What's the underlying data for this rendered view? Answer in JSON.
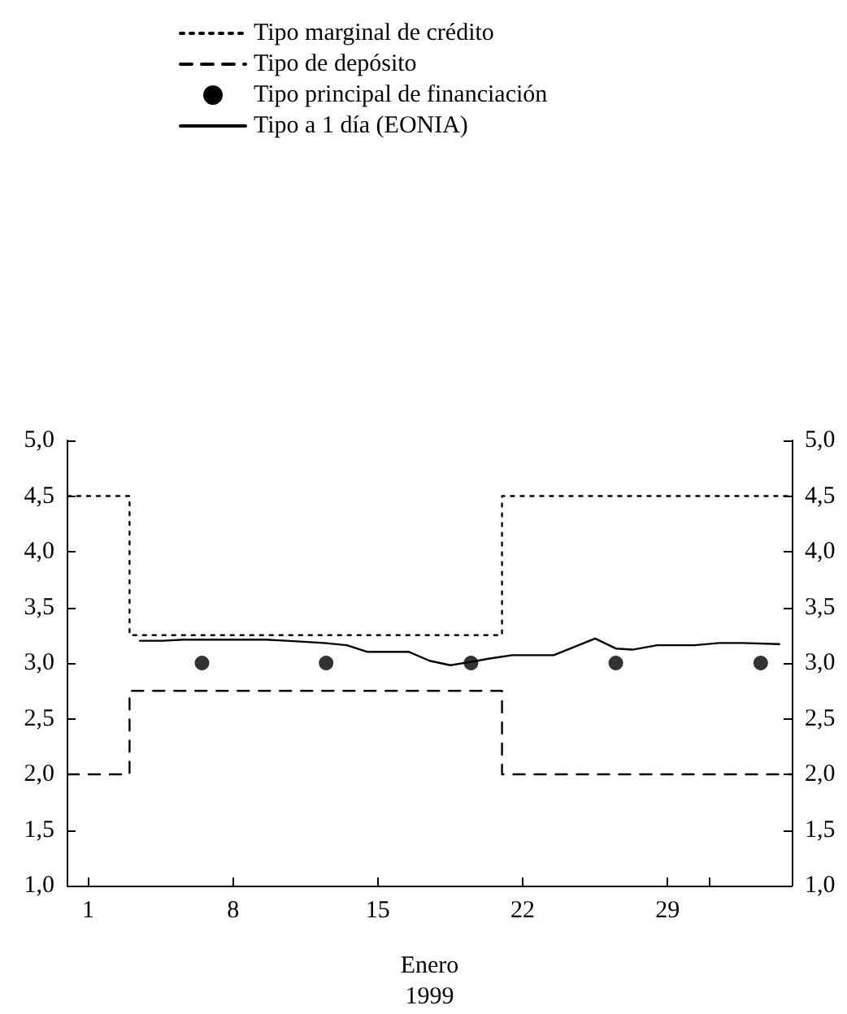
{
  "chart_data": {
    "type": "line",
    "xlabel": "Enero 1999",
    "xlim": [
      0,
      35
    ],
    "xticks": [
      1,
      8,
      15,
      22,
      29,
      {
        "value": 31,
        "label": null
      }
    ],
    "ylim": [
      1.0,
      5.0
    ],
    "yticks": [
      {
        "value": 1.0,
        "label": "1,0"
      },
      {
        "value": 1.5,
        "label": "1,5"
      },
      {
        "value": 2.0,
        "label": "2,0"
      },
      {
        "value": 2.5,
        "label": "2,5"
      },
      {
        "value": 3.0,
        "label": "3,0"
      },
      {
        "value": 3.5,
        "label": "3,5"
      },
      {
        "value": 4.0,
        "label": "4,0"
      },
      {
        "value": 4.5,
        "label": "4,5"
      },
      {
        "value": 5.0,
        "label": "5,0"
      }
    ],
    "y2lim": [
      1.0,
      5.0
    ],
    "y2ticks": [
      {
        "value": 1.0,
        "label": "1,0"
      },
      {
        "value": 1.5,
        "label": "1,5"
      },
      {
        "value": 2.0,
        "label": "2,0"
      },
      {
        "value": 2.5,
        "label": "2,5"
      },
      {
        "value": 3.0,
        "label": "3,0"
      },
      {
        "value": 3.5,
        "label": "3,5"
      },
      {
        "value": 4.0,
        "label": "4,0"
      },
      {
        "value": 4.5,
        "label": "4,5"
      },
      {
        "value": 5.0,
        "label": "5,0"
      }
    ],
    "grid": false,
    "legend": "top",
    "series": [
      {
        "name": "Tipo marginal de crédito",
        "type": "step",
        "color": "#000000",
        "line_style": "dotted",
        "marker": "none",
        "x": [
          0,
          3,
          21,
          35
        ],
        "values": [
          4.5,
          3.25,
          4.5,
          4.5
        ]
      },
      {
        "name": "Tipo de depósito",
        "type": "step",
        "color": "#000000",
        "line_style": "dashed",
        "marker": "none",
        "x": [
          0,
          3,
          21,
          35
        ],
        "values": [
          2.0,
          2.75,
          2.0,
          2.0
        ]
      },
      {
        "name": "Tipo principal de financiación",
        "type": "scatter",
        "color": "#000000",
        "marker": "circle",
        "x": [
          6.5,
          12.5,
          19.5,
          26.5,
          33.5
        ],
        "values": [
          3.0,
          3.0,
          3.0,
          3.0,
          3.0
        ]
      },
      {
        "name": "Tipo a 1 día (EONIA)",
        "color": "#000000",
        "line_style": "solid",
        "marker": "none",
        "x": [
          3.5,
          4.6,
          5.6,
          9.6,
          10.6,
          12.4,
          13.5,
          14.5,
          16.5,
          17.5,
          18.5,
          19.5,
          20.4,
          21.5,
          23.5,
          25.5,
          26.5,
          27.3,
          28.5,
          30.3,
          31.5,
          32.6,
          34.4
        ],
        "values": [
          3.2,
          3.2,
          3.21,
          3.21,
          3.2,
          3.18,
          3.16,
          3.1,
          3.1,
          3.02,
          2.98,
          3.01,
          3.04,
          3.07,
          3.07,
          3.22,
          3.13,
          3.12,
          3.16,
          3.16,
          3.18,
          3.18,
          3.17
        ]
      }
    ]
  }
}
